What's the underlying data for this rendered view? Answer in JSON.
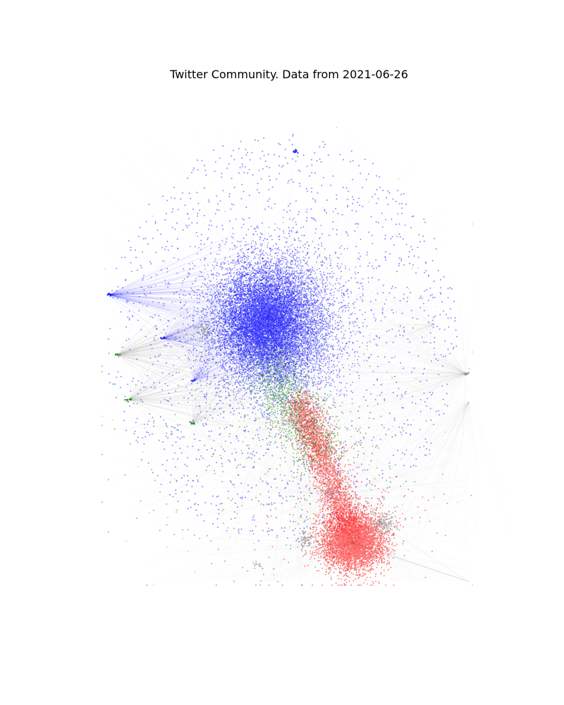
{
  "title": "Twitter Community. Data from 2021-06-26",
  "colors": {
    "community_blue": "#0000ff",
    "community_red": "#ff0000",
    "community_green": "#008000",
    "community_gray": "#808080",
    "edges": "#b0b0b0",
    "background": "#ffffff"
  }
}
